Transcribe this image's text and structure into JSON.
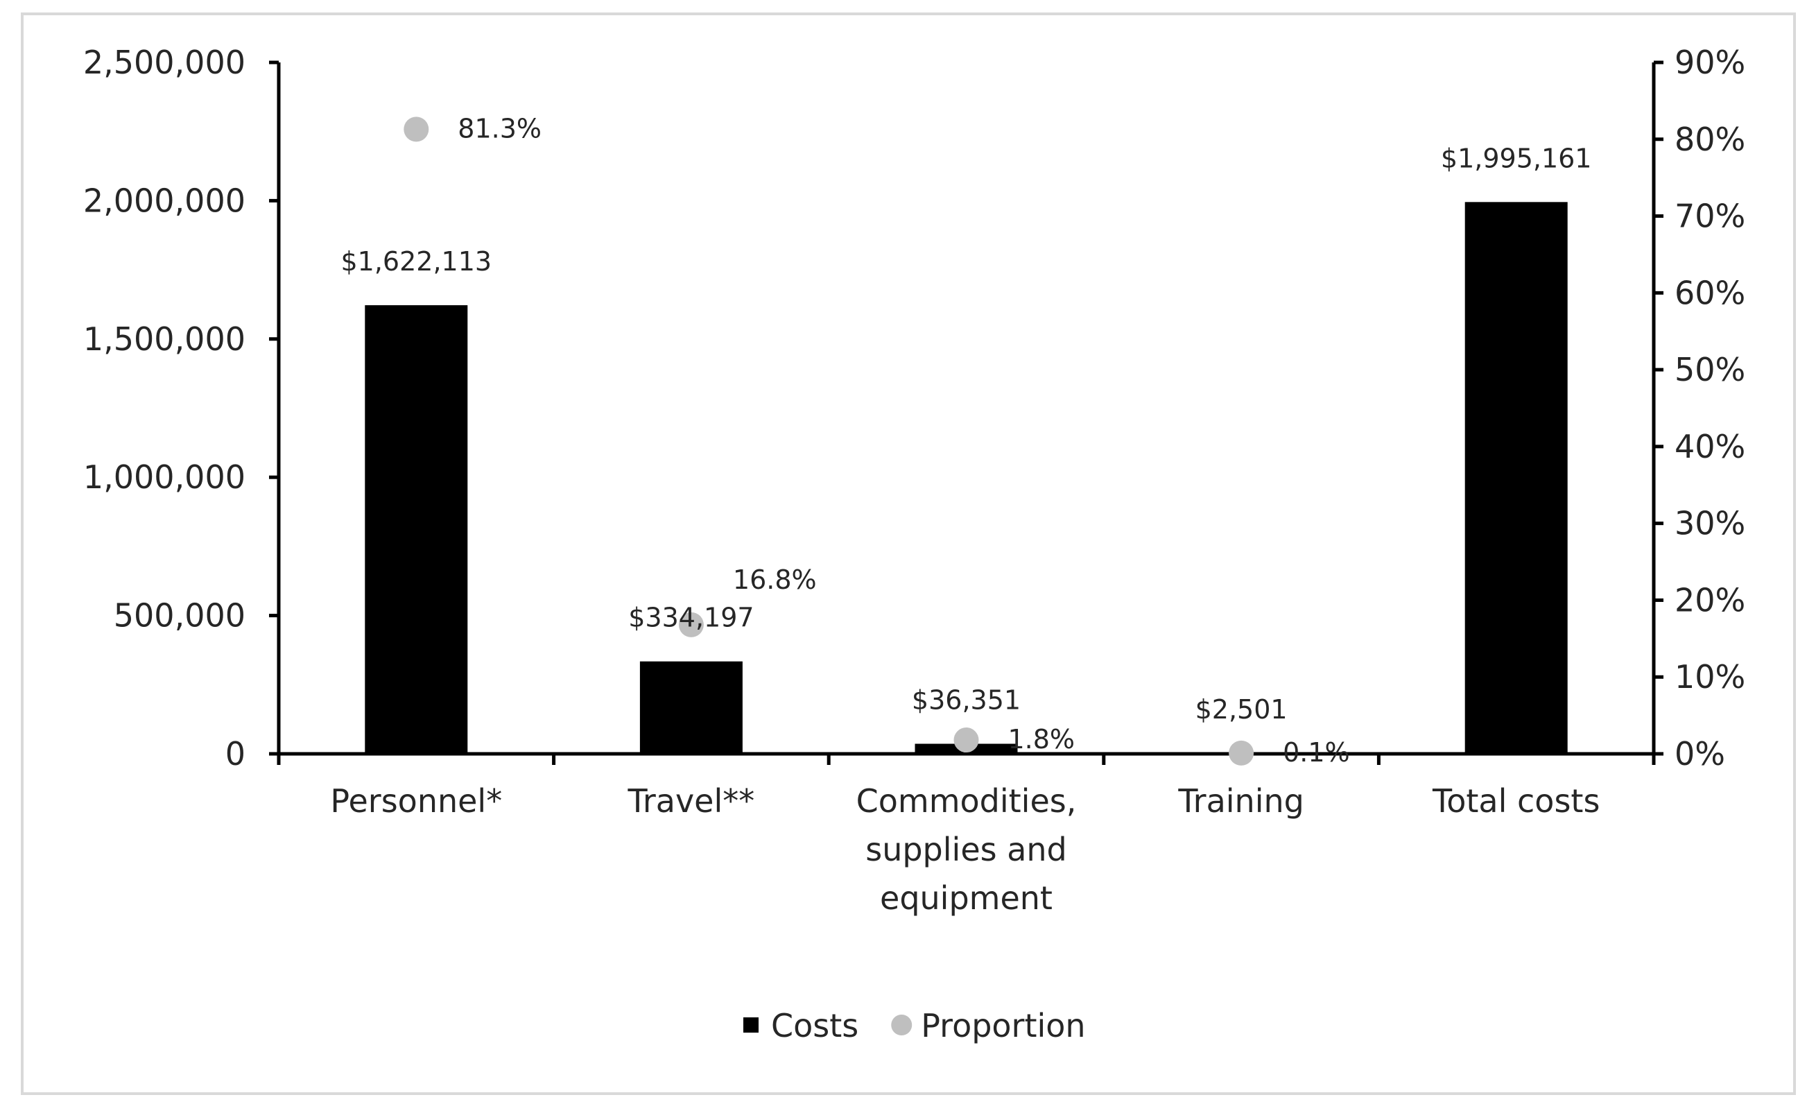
{
  "chart_data": {
    "type": "bar",
    "categories": [
      [
        "Personnel*"
      ],
      [
        "Travel**"
      ],
      [
        "Commodities,",
        "supplies and",
        "equipment"
      ],
      [
        "Training"
      ],
      [
        "Total costs"
      ]
    ],
    "series": [
      {
        "name": "Costs",
        "axis": "left",
        "kind": "bar",
        "color": "#000000",
        "values": [
          1622113,
          334197,
          36351,
          2501,
          1995161
        ],
        "labels": [
          "$1,622,113",
          "$334,197",
          "$36,351",
          "$2,501",
          "$1,995,161"
        ]
      },
      {
        "name": "Proportion",
        "axis": "right",
        "kind": "scatter",
        "color": "#bfbfbf",
        "values": [
          81.3,
          16.8,
          1.8,
          0.1,
          null
        ],
        "labels": [
          "81.3%",
          "16.8%",
          "1.8%",
          "0.1%",
          null
        ]
      }
    ],
    "y_left": {
      "min": 0,
      "max": 2500000,
      "ticks": [
        0,
        500000,
        1000000,
        1500000,
        2000000,
        2500000
      ],
      "tick_labels": [
        "0",
        "500,000",
        "1,000,000",
        "1,500,000",
        "2,000,000",
        "2,500,000"
      ]
    },
    "y_right": {
      "min": 0,
      "max": 90,
      "ticks": [
        0,
        10,
        20,
        30,
        40,
        50,
        60,
        70,
        80,
        90
      ],
      "tick_labels": [
        "0%",
        "10%",
        "20%",
        "30%",
        "40%",
        "50%",
        "60%",
        "70%",
        "80%",
        "90%"
      ]
    },
    "legend": {
      "placement": "bottom",
      "items": [
        {
          "name": "Costs",
          "marker": "square",
          "color": "#000000"
        },
        {
          "name": "Proportion",
          "marker": "circle",
          "color": "#bfbfbf"
        }
      ]
    }
  }
}
